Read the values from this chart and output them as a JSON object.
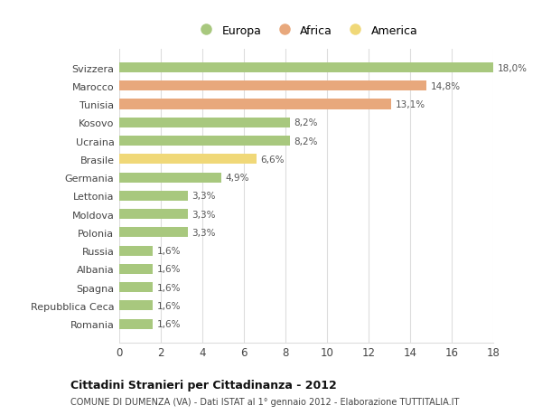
{
  "categories": [
    "Svizzera",
    "Marocco",
    "Tunisia",
    "Kosovo",
    "Ucraina",
    "Brasile",
    "Germania",
    "Lettonia",
    "Moldova",
    "Polonia",
    "Russia",
    "Albania",
    "Spagna",
    "Repubblica Ceca",
    "Romania"
  ],
  "values": [
    18.0,
    14.8,
    13.1,
    8.2,
    8.2,
    6.6,
    4.9,
    3.3,
    3.3,
    3.3,
    1.6,
    1.6,
    1.6,
    1.6,
    1.6
  ],
  "labels": [
    "18,0%",
    "14,8%",
    "13,1%",
    "8,2%",
    "8,2%",
    "6,6%",
    "4,9%",
    "3,3%",
    "3,3%",
    "3,3%",
    "1,6%",
    "1,6%",
    "1,6%",
    "1,6%",
    "1,6%"
  ],
  "continent": [
    "Europa",
    "Africa",
    "Africa",
    "Europa",
    "Europa",
    "America",
    "Europa",
    "Europa",
    "Europa",
    "Europa",
    "Europa",
    "Europa",
    "Europa",
    "Europa",
    "Europa"
  ],
  "colors": {
    "Europa": "#a8c87e",
    "Africa": "#e8a87c",
    "America": "#f0d878"
  },
  "legend_order": [
    "Europa",
    "Africa",
    "America"
  ],
  "title": "Cittadini Stranieri per Cittadinanza - 2012",
  "subtitle": "COMUNE DI DUMENZA (VA) - Dati ISTAT al 1° gennaio 2012 - Elaborazione TUTTITALIA.IT",
  "xlim": [
    0,
    18
  ],
  "xticks": [
    0,
    2,
    4,
    6,
    8,
    10,
    12,
    14,
    16,
    18
  ],
  "bg_color": "#ffffff",
  "grid_color": "#dddddd",
  "bar_height": 0.55
}
